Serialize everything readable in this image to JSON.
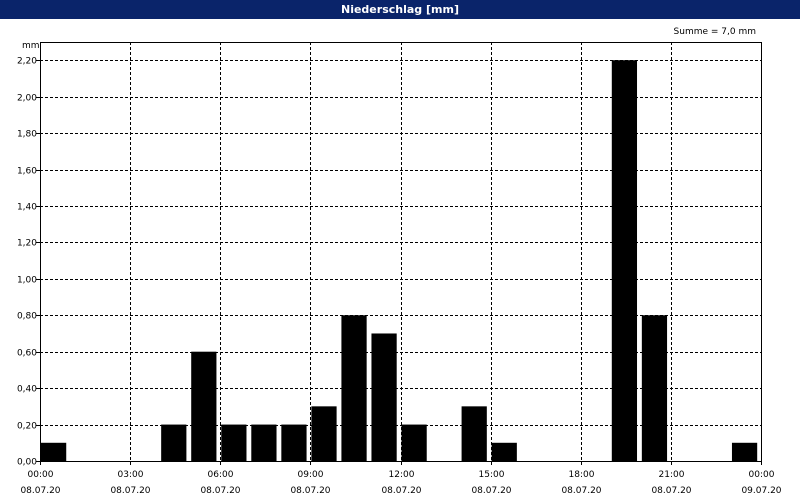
{
  "window": {
    "title": "Niederschlag [mm]"
  },
  "chart_data": {
    "type": "bar",
    "title": "Niederschlag [mm]",
    "ylabel": "mm",
    "annotation": "Summe = 7,0 mm",
    "ylim": [
      0,
      2.3
    ],
    "xlim_hours": [
      0,
      24
    ],
    "y_ticks": [
      "0,00",
      "0,20",
      "0,40",
      "0,60",
      "0,80",
      "1,00",
      "1,20",
      "1,40",
      "1,60",
      "1,80",
      "2,00",
      "2,20"
    ],
    "x_ticks": [
      {
        "time": "00:00",
        "date": "08.07.20"
      },
      {
        "time": "03:00",
        "date": "08.07.20"
      },
      {
        "time": "06:00",
        "date": "08.07.20"
      },
      {
        "time": "09:00",
        "date": "08.07.20"
      },
      {
        "time": "12:00",
        "date": "08.07.20"
      },
      {
        "time": "15:00",
        "date": "08.07.20"
      },
      {
        "time": "18:00",
        "date": "08.07.20"
      },
      {
        "time": "21:00",
        "date": "08.07.20"
      },
      {
        "time": "00:00",
        "date": "09.07.20"
      }
    ],
    "categories": [
      "00:00",
      "01:00",
      "02:00",
      "03:00",
      "04:00",
      "05:00",
      "06:00",
      "07:00",
      "08:00",
      "09:00",
      "10:00",
      "11:00",
      "12:00",
      "13:00",
      "14:00",
      "15:00",
      "16:00",
      "17:00",
      "18:00",
      "19:00",
      "20:00",
      "21:00",
      "22:00",
      "23:00"
    ],
    "values": [
      0.1,
      0,
      0,
      0,
      0.2,
      0.6,
      0.2,
      0.2,
      0.2,
      0.3,
      0.8,
      0.7,
      0.2,
      0,
      0.3,
      0.1,
      0,
      0,
      0,
      2.2,
      0.8,
      0,
      0,
      0.1
    ],
    "grid": true,
    "colors": {
      "bar": "#000000",
      "title_bg": "#0a246a",
      "title_fg": "#ffffff"
    }
  }
}
